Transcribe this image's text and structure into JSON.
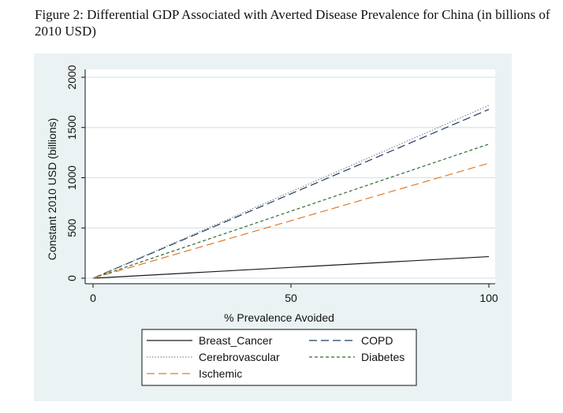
{
  "caption": "Figure 2:  Differential GDP Associated with Averted Disease Prevalence for China (in billions of 2010 USD)",
  "chart_data": {
    "type": "line",
    "title": "Differential GDP Associated with Averted Disease Prevalence for China (in billions of 2010 USD)",
    "xlabel": "% Prevalence Avoided",
    "ylabel": "Constant 2010 USD (billions)",
    "xlim": [
      0,
      100
    ],
    "ylim": [
      0,
      2000
    ],
    "xticks": [
      0,
      50,
      100
    ],
    "yticks": [
      0,
      500,
      1000,
      1500,
      2000
    ],
    "grid": true,
    "legend_position": "bottom",
    "series": [
      {
        "name": "Breast_Cancer",
        "x": [
          0,
          100
        ],
        "values": [
          0,
          215
        ],
        "color": "#1a1a1a",
        "dash": "solid"
      },
      {
        "name": "COPD",
        "x": [
          0,
          100
        ],
        "values": [
          0,
          1680
        ],
        "color": "#1f3a5f",
        "dash": "long-dash"
      },
      {
        "name": "Cerebrovascular",
        "x": [
          0,
          100
        ],
        "values": [
          0,
          1720
        ],
        "color": "#8a8a8a",
        "dash": "dotted"
      },
      {
        "name": "Diabetes",
        "x": [
          0,
          100
        ],
        "values": [
          0,
          1335
        ],
        "color": "#2e6b2e",
        "dash": "short-dash"
      },
      {
        "name": "Ischemic",
        "x": [
          0,
          100
        ],
        "values": [
          0,
          1145
        ],
        "color": "#e07b2a",
        "dash": "long-dash"
      }
    ],
    "panel_color": "#eaf2f3"
  }
}
